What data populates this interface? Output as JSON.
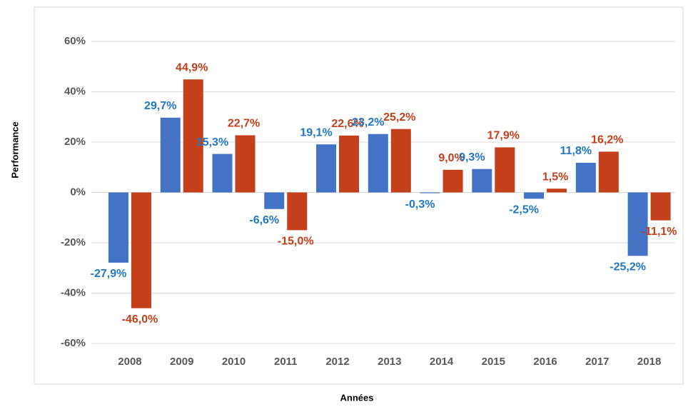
{
  "chart_data": {
    "type": "bar",
    "categories": [
      "2008",
      "2009",
      "2010",
      "2011",
      "2012",
      "2013",
      "2014",
      "2015",
      "2016",
      "2017",
      "2018"
    ],
    "series": [
      {
        "color": "#4472c4",
        "label_color": "#2277c4",
        "values": [
          -27.9,
          29.7,
          15.3,
          -6.6,
          19.1,
          23.2,
          -0.3,
          9.3,
          -2.5,
          11.8,
          -25.2
        ],
        "value_labels": [
          "-27,9%",
          "29,7%",
          "15,3%",
          "-6,6%",
          "19,1%",
          "23,2%",
          "-0,3%",
          "9,3%",
          "-2,5%",
          "11,8%",
          "-25,2%"
        ]
      },
      {
        "color": "#c3401a",
        "label_color": "#c3401a",
        "values": [
          -46.0,
          44.9,
          22.7,
          -15.0,
          22.6,
          25.2,
          9.0,
          17.9,
          1.5,
          16.2,
          -11.1
        ],
        "value_labels": [
          "-46,0%",
          "44,9%",
          "22,7%",
          "-15,0%",
          "22,6%",
          "25,2%",
          "9,0%",
          "17,9%",
          "1,5%",
          "16,2%",
          "-11,1%"
        ]
      }
    ],
    "ylim": [
      -60,
      60
    ],
    "yticks": [
      {
        "value": -60,
        "label": "-60%"
      },
      {
        "value": -40,
        "label": "-40%"
      },
      {
        "value": -20,
        "label": "-20%"
      },
      {
        "value": 0,
        "label": "0%"
      },
      {
        "value": 20,
        "label": "20%"
      },
      {
        "value": 40,
        "label": "40%"
      },
      {
        "value": 60,
        "label": "60%"
      }
    ],
    "grid": true,
    "y_label": "Performance",
    "x_label": "Années"
  }
}
